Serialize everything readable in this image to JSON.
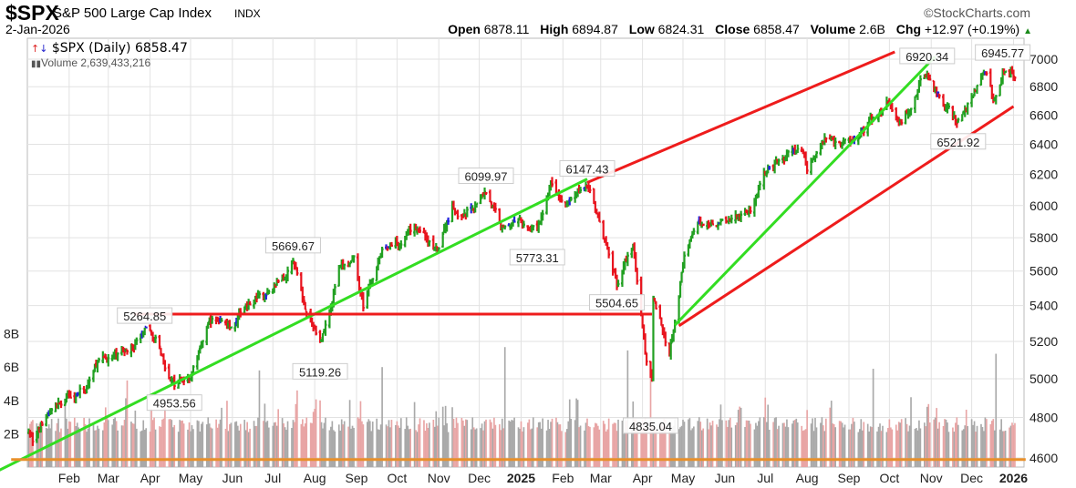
{
  "header": {
    "symbol": "$SPX",
    "name": "S&P 500 Large Cap Index",
    "exchange": "INDX",
    "date": "2-Jan-2026",
    "copyright": "©StockCharts.com",
    "open_label": "Open",
    "open": "6878.11",
    "high_label": "High",
    "high": "6894.87",
    "low_label": "Low",
    "low": "6824.31",
    "close_label": "Close",
    "close": "6858.47",
    "volume_label": "Volume",
    "volume": "2.6B",
    "chg_label": "Chg",
    "chg": "+12.97 (+0.19%)",
    "chg_direction_icon": "triangle-up-icon"
  },
  "legend": {
    "price": "$SPX (Daily) 6858.47",
    "volume": "Volume 2,639,433,216"
  },
  "chart_data": {
    "type": "ohlc",
    "scale": "log",
    "ylim": [
      4560,
      7080
    ],
    "y_ticks": [
      4600,
      4800,
      5000,
      5200,
      5400,
      5600,
      5800,
      6000,
      6200,
      6400,
      6600,
      6800,
      7000
    ],
    "volume_ticks": [
      "2B",
      "4B",
      "6B",
      "8B"
    ],
    "x_ticks": [
      "Feb",
      "Mar",
      "Apr",
      "May",
      "Jun",
      "Jul",
      "Aug",
      "Sep",
      "Oct",
      "Nov",
      "Dec",
      "2025",
      "Feb",
      "Mar",
      "Apr",
      "May",
      "Jun",
      "Jul",
      "Aug",
      "Sep",
      "Oct",
      "Nov",
      "Dec",
      "2026"
    ],
    "x_tick_dates": [
      "2024-02-01",
      "2024-03-01",
      "2024-04-01",
      "2024-05-01",
      "2024-06-01",
      "2024-07-01",
      "2024-08-01",
      "2024-09-01",
      "2024-10-01",
      "2024-11-01",
      "2024-12-01",
      "2025-01-01",
      "2025-02-01",
      "2025-03-01",
      "2025-04-01",
      "2025-05-01",
      "2025-06-01",
      "2025-07-01",
      "2025-08-01",
      "2025-09-01",
      "2025-10-01",
      "2025-11-01",
      "2025-12-01",
      "2026-01-01"
    ],
    "grid": true,
    "bar_colors": {
      "up": "#22a022",
      "down": "#e8141e",
      "other": "#2222dd"
    },
    "volume_colors": {
      "up": "#a9a9a9",
      "down": "#e8a5a5"
    },
    "closes": [
      [
        "2024-01-02",
        4742
      ],
      [
        "2024-01-05",
        4697
      ],
      [
        "2024-01-19",
        4840
      ],
      [
        "2024-02-01",
        4906
      ],
      [
        "2024-02-13",
        4953
      ],
      [
        "2024-02-22",
        5087
      ],
      [
        "2024-03-08",
        5123
      ],
      [
        "2024-03-19",
        5178
      ],
      [
        "2024-03-28",
        5254
      ],
      [
        "2024-04-05",
        5204
      ],
      [
        "2024-04-19",
        4967
      ],
      [
        "2024-05-01",
        5018
      ],
      [
        "2024-05-15",
        5308
      ],
      [
        "2024-05-21",
        5321
      ],
      [
        "2024-05-31",
        5277
      ],
      [
        "2024-06-12",
        5421
      ],
      [
        "2024-06-28",
        5460
      ],
      [
        "2024-07-16",
        5667
      ],
      [
        "2024-07-25",
        5399
      ],
      [
        "2024-08-05",
        5186
      ],
      [
        "2024-08-19",
        5608
      ],
      [
        "2024-08-30",
        5648
      ],
      [
        "2024-09-06",
        5408
      ],
      [
        "2024-09-19",
        5713
      ],
      [
        "2024-10-18",
        5864
      ],
      [
        "2024-10-31",
        5705
      ],
      [
        "2024-11-11",
        6001
      ],
      [
        "2024-11-19",
        5917
      ],
      [
        "2024-12-06",
        6090
      ],
      [
        "2024-12-18",
        5872
      ],
      [
        "2024-12-31",
        5882
      ],
      [
        "2025-01-13",
        5836
      ],
      [
        "2025-01-23",
        6118
      ],
      [
        "2025-02-03",
        5994
      ],
      [
        "2025-02-19",
        6144
      ],
      [
        "2025-03-13",
        5521
      ],
      [
        "2025-03-25",
        5776
      ],
      [
        "2025-04-04",
        5074
      ],
      [
        "2025-04-08",
        4982
      ],
      [
        "2025-04-09",
        5456
      ],
      [
        "2025-04-21",
        5158
      ],
      [
        "2025-05-02",
        5686
      ],
      [
        "2025-05-13",
        5886
      ],
      [
        "2025-05-30",
        5911
      ],
      [
        "2025-06-20",
        5967
      ],
      [
        "2025-06-30",
        6205
      ],
      [
        "2025-07-28",
        6389
      ],
      [
        "2025-08-01",
        6238
      ],
      [
        "2025-08-15",
        6449
      ],
      [
        "2025-09-02",
        6415
      ],
      [
        "2025-09-30",
        6688
      ],
      [
        "2025-10-10",
        6552
      ],
      [
        "2025-10-28",
        6890
      ],
      [
        "2025-11-07",
        6728
      ],
      [
        "2025-11-20",
        6538
      ],
      [
        "2025-12-11",
        6901
      ],
      [
        "2025-12-17",
        6721
      ],
      [
        "2025-12-24",
        6932
      ],
      [
        "2026-01-02",
        6858
      ]
    ],
    "volume_spikes_billions": [
      [
        "2024-03-15",
        5.2
      ],
      [
        "2024-06-21",
        5.8
      ],
      [
        "2024-07-19",
        4.6
      ],
      [
        "2024-08-05",
        4.0
      ],
      [
        "2024-09-20",
        6.0
      ],
      [
        "2024-12-20",
        7.2
      ],
      [
        "2025-03-21",
        7.0
      ],
      [
        "2025-04-07",
        6.0
      ],
      [
        "2025-09-19",
        5.9
      ],
      [
        "2025-12-19",
        6.8
      ],
      [
        "2026-01-02",
        2.64
      ]
    ],
    "annotations": [
      {
        "text": "5264.85",
        "date": "2024-03-28",
        "position": "above"
      },
      {
        "text": "4953.56",
        "date": "2024-04-19",
        "position": "below"
      },
      {
        "text": "5669.67",
        "date": "2024-07-16",
        "position": "above"
      },
      {
        "text": "5119.26",
        "date": "2024-08-05",
        "position": "below"
      },
      {
        "text": "6099.97",
        "date": "2024-12-06",
        "position": "above"
      },
      {
        "text": "5773.31",
        "date": "2025-01-13",
        "position": "below"
      },
      {
        "text": "6147.43",
        "date": "2025-02-19",
        "position": "above"
      },
      {
        "text": "5504.65",
        "date": "2025-03-13",
        "position": "below"
      },
      {
        "text": "4835.04",
        "date": "2025-04-07",
        "position": "below"
      },
      {
        "text": "6920.34",
        "date": "2025-10-29",
        "position": "above"
      },
      {
        "text": "6521.92",
        "date": "2025-11-21",
        "position": "below"
      },
      {
        "text": "6945.77",
        "date": "2025-12-24",
        "position": "above"
      }
    ],
    "annotation_prices": [
      5264.85,
      4953.56,
      5669.67,
      5119.26,
      6099.97,
      5773.31,
      6147.43,
      5504.65,
      4835.04,
      6920.34,
      6521.92,
      6945.77
    ],
    "trendlines": [
      {
        "color": "#33dd22",
        "from": [
          "2023-12-11",
          4540
        ],
        "to": [
          "2025-02-19",
          6170
        ]
      },
      {
        "color": "#ee1c1c",
        "from": [
          "2024-03-20",
          5352
        ],
        "to": [
          "2025-04-08",
          5352
        ]
      },
      {
        "color": "#ee1c1c",
        "from": [
          "2025-02-19",
          6147
        ],
        "to": [
          "2025-10-05",
          7054
        ]
      },
      {
        "color": "#33dd22",
        "from": [
          "2025-04-25",
          5290
        ],
        "to": [
          "2025-11-04",
          7020
        ]
      },
      {
        "color": "#ee1c1c",
        "from": [
          "2025-04-28",
          5286
        ],
        "to": [
          "2026-01-01",
          6660
        ]
      },
      {
        "color": "#e8902a",
        "from": [
          "2023-12-20",
          4592
        ],
        "to": [
          "2026-01-10",
          4592
        ]
      }
    ]
  }
}
